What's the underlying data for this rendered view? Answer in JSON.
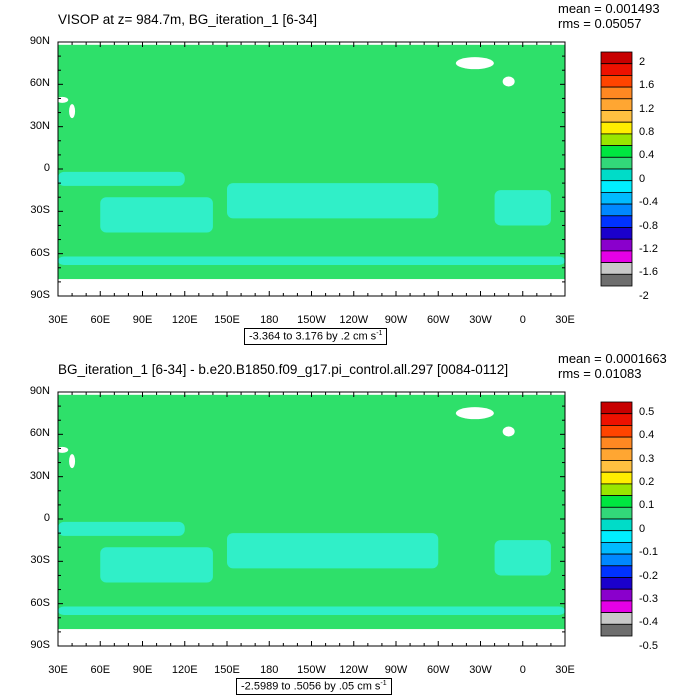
{
  "chart_data": [
    {
      "type": "heatmap",
      "title": "VISOP at z= 984.7m, BG_iteration_1 [6-34]",
      "stats": {
        "mean": "mean = 0.001493",
        "rms": "rms = 0.05057"
      },
      "lat_ticks": [
        "90N",
        "60N",
        "30N",
        "0",
        "30S",
        "60S",
        "90S"
      ],
      "lon_ticks": [
        "30E",
        "60E",
        "90E",
        "120E",
        "150E",
        "180",
        "150W",
        "120W",
        "90W",
        "60W",
        "30W",
        "0",
        "30E"
      ],
      "range_text": "-3.364 to 3.176 by .2 cm s",
      "range_unit_exp": "-1",
      "colorbar": {
        "labels": [
          "2",
          "1.6",
          "1.2",
          "0.8",
          "0.4",
          "0",
          "-0.4",
          "-0.8",
          "-1.2",
          "-1.6",
          "-2"
        ],
        "colors": [
          "#c80000",
          "#ee1100",
          "#ff4400",
          "#ff8822",
          "#ffa632",
          "#ffc040",
          "#ffee00",
          "#99e600",
          "#00e640",
          "#32d879",
          "#00dcc8",
          "#00eeff",
          "#00bbff",
          "#0088ff",
          "#0033ff",
          "#1a00cc",
          "#8a00cc",
          "#e600e6",
          "#c8c8c8",
          "#6e6e6e"
        ]
      },
      "field_colors": {
        "background": "#2ee06a",
        "negative": "#30efc8",
        "land": "#ffffff"
      }
    },
    {
      "type": "heatmap",
      "title": "BG_iteration_1 [6-34] - b.e20.B1850.f09_g17.pi_control.all.297 [0084-0112]",
      "stats": {
        "mean": "mean = 0.0001663",
        "rms": "rms = 0.01083"
      },
      "lat_ticks": [
        "90N",
        "60N",
        "30N",
        "0",
        "30S",
        "60S",
        "90S"
      ],
      "lon_ticks": [
        "30E",
        "60E",
        "90E",
        "120E",
        "150E",
        "180",
        "150W",
        "120W",
        "90W",
        "60W",
        "30W",
        "0",
        "30E"
      ],
      "range_text": "-2.5989 to .5056 by .05 cm s",
      "range_unit_exp": "-1",
      "colorbar": {
        "labels": [
          "0.5",
          "0.4",
          "0.3",
          "0.2",
          "0.1",
          "0",
          "-0.1",
          "-0.2",
          "-0.3",
          "-0.4",
          "-0.5"
        ],
        "colors": [
          "#c80000",
          "#ee1100",
          "#ff4400",
          "#ff8822",
          "#ffa632",
          "#ffc040",
          "#ffee00",
          "#99e600",
          "#00e640",
          "#32d879",
          "#00dcc8",
          "#00eeff",
          "#00bbff",
          "#0088ff",
          "#0033ff",
          "#1a00cc",
          "#8a00cc",
          "#e600e6",
          "#c8c8c8",
          "#6e6e6e"
        ]
      },
      "field_colors": {
        "background": "#2ee06a",
        "negative": "#30efc8",
        "land": "#ffffff"
      }
    }
  ]
}
